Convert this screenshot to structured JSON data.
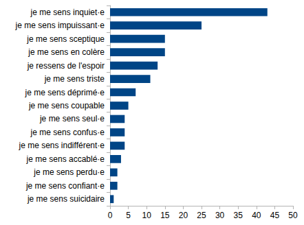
{
  "chart_data": {
    "type": "bar",
    "orientation": "horizontal",
    "categories": [
      "je me sens inquiet·e",
      "je me sens impuissant·e",
      "je me sens sceptique",
      "je me sens en colère",
      "je ressens de l'espoir",
      "je me sens triste",
      "je me sens déprimé·e",
      "je me sens coupable",
      "je me sens seul·e",
      "je me sens confus·e",
      "je me sens indifférent·e",
      "je me sens accablé·e",
      "je me sens perdu·e",
      "je me sens confiant·e",
      "je me sens suicidaire"
    ],
    "values": [
      43,
      25,
      15,
      15,
      13,
      11,
      7,
      5,
      4,
      4,
      4,
      3,
      2,
      2,
      1
    ],
    "color": "#004586",
    "xlim": [
      0,
      50
    ],
    "xticks": [
      0,
      5,
      10,
      15,
      20,
      25,
      30,
      35,
      40,
      45,
      50
    ],
    "grid": false
  }
}
